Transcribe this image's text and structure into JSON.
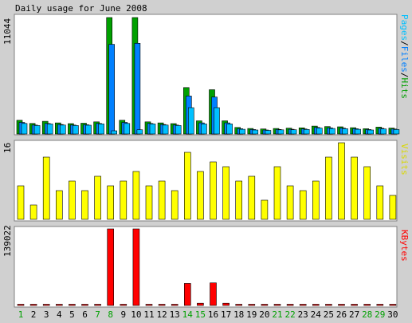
{
  "title": "Daily usage for June 2008",
  "colors": {
    "background": "#d0d0d0",
    "panel": "#ffffff",
    "hits": "#00a000",
    "files": "#0080ff",
    "pages": "#00c0ff",
    "visits": "#ffff00",
    "kbytes": "#ff0000",
    "weekday_label": "#000000",
    "weekend_label": "#00a000"
  },
  "legend": {
    "pages": "Pages",
    "sep1": "/",
    "files": "Files",
    "sep2": "/",
    "hits": "Hits",
    "visits": "Visits",
    "kbytes": "KBytes"
  },
  "chart_data": {
    "type": "bar",
    "days": [
      "1",
      "2",
      "3",
      "4",
      "5",
      "6",
      "7",
      "8",
      "9",
      "10",
      "11",
      "12",
      "13",
      "14",
      "15",
      "16",
      "17",
      "18",
      "19",
      "20",
      "21",
      "22",
      "23",
      "24",
      "25",
      "26",
      "27",
      "28",
      "29",
      "30"
    ],
    "weekend_days": [
      "1",
      "7",
      "8",
      "14",
      "15",
      "21",
      "22",
      "28",
      "29"
    ],
    "panels": [
      {
        "name": "hits-files-pages",
        "max_label": "11044",
        "ylim": [
          0,
          11044
        ],
        "series": [
          {
            "name": "Hits",
            "values": [
              1300,
              1000,
              1200,
              1050,
              980,
              1020,
              1150,
              11044,
              1300,
              11044,
              1150,
              1050,
              980,
              4400,
              1250,
              4200,
              1250,
              620,
              520,
              480,
              520,
              550,
              580,
              750,
              700,
              680,
              600,
              500,
              650,
              560
            ]
          },
          {
            "name": "Files",
            "values": [
              1100,
              850,
              1000,
              900,
              850,
              880,
              1000,
              8500,
              1100,
              8600,
              1000,
              900,
              850,
              3600,
              1050,
              3500,
              1050,
              500,
              420,
              380,
              430,
              450,
              480,
              620,
              580,
              560,
              500,
              420,
              540,
              470
            ]
          },
          {
            "name": "Pages",
            "values": [
              1000,
              800,
              950,
              850,
              800,
              830,
              950,
              300,
              1000,
              400,
              950,
              850,
              800,
              2500,
              950,
              2500,
              950,
              450,
              380,
              340,
              390,
              400,
              430,
              560,
              520,
              500,
              450,
              380,
              480,
              420
            ]
          }
        ]
      },
      {
        "name": "visits",
        "max_label": "16",
        "ylim": [
          0,
          16
        ],
        "series": [
          {
            "name": "Visits",
            "values": [
              7,
              3,
              13,
              6,
              8,
              6,
              9,
              7,
              8,
              10,
              7,
              8,
              6,
              14,
              10,
              12,
              11,
              8,
              9,
              4,
              11,
              7,
              6,
              8,
              13,
              16,
              13,
              11,
              7,
              5
            ]
          }
        ]
      },
      {
        "name": "kbytes",
        "max_label": "139022",
        "ylim": [
          0,
          139022
        ],
        "series": [
          {
            "name": "KBytes",
            "values": [
              1800,
              1800,
              1800,
              1800,
              1800,
              1800,
              1800,
              139022,
              1800,
              139022,
              1800,
              1800,
              1800,
              40000,
              4000,
              41000,
              4000,
              1200,
              900,
              800,
              900,
              900,
              1000,
              1200,
              1100,
              1100,
              1000,
              900,
              1100,
              1000
            ]
          }
        ]
      }
    ]
  }
}
